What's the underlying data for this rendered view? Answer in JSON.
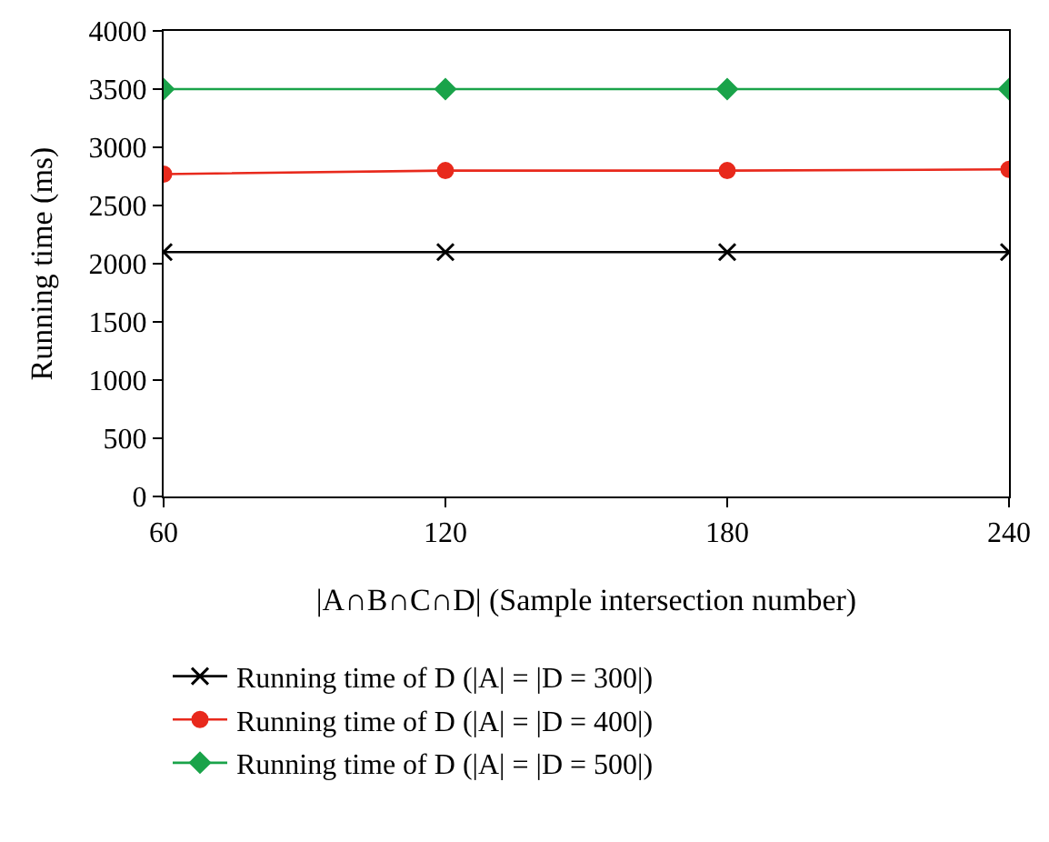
{
  "chart_data": {
    "type": "line",
    "xlabel": "|A∩B∩C∩D| (Sample intersection number)",
    "ylabel": "Running time (ms)",
    "x": [
      60,
      120,
      180,
      240
    ],
    "xlim": [
      60,
      240
    ],
    "xticks": [
      60,
      120,
      180,
      240
    ],
    "ylim": [
      0,
      4000
    ],
    "yticks": [
      0,
      500,
      1000,
      1500,
      2000,
      2500,
      3000,
      3500,
      4000
    ],
    "series": [
      {
        "name": "Running time of D (|A| = |D = 300|)",
        "color": "#000000",
        "marker": "cross",
        "values": [
          2100,
          2100,
          2100,
          2100
        ]
      },
      {
        "name": "Running time of D (|A| = |D = 400|)",
        "color": "#e8291c",
        "marker": "circle",
        "values": [
          2770,
          2800,
          2800,
          2810
        ]
      },
      {
        "name": "Running time of D (|A| = |D = 500|)",
        "color": "#1aa34a",
        "marker": "diamond",
        "values": [
          3500,
          3500,
          3500,
          3500
        ]
      }
    ],
    "legend": "bottom"
  }
}
